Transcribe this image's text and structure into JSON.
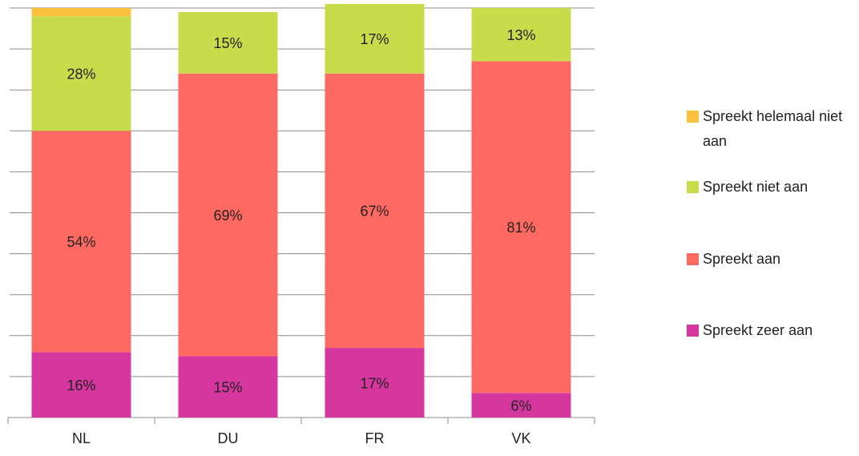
{
  "chart_data": {
    "type": "stacked_bar",
    "categories": [
      "NL",
      "DU",
      "FR",
      "VK"
    ],
    "series": [
      {
        "name": "Spreekt zeer aan",
        "color": "#d5379e",
        "values": [
          16,
          15,
          17,
          6
        ],
        "value_labels": [
          "16%",
          "15%",
          "17%",
          "6%"
        ]
      },
      {
        "name": "Spreekt aan",
        "color": "#fe6a61",
        "values": [
          54,
          69,
          67,
          81
        ],
        "value_labels": [
          "54%",
          "69%",
          "67%",
          "81%"
        ]
      },
      {
        "name": "Spreekt niet aan",
        "color": "#c8dc4b",
        "values": [
          28,
          15,
          17,
          13
        ],
        "value_labels": [
          "28%",
          "15%",
          "17%",
          "13%"
        ]
      },
      {
        "name": "Spreekt helemaal niet aan",
        "color": "#fbc03c",
        "values": [
          2,
          0,
          0,
          0
        ]
      }
    ],
    "ylim": [
      0,
      100
    ],
    "yticks": [
      0,
      10,
      20,
      30,
      40,
      50,
      60,
      70,
      80,
      90,
      100
    ],
    "grid": true,
    "legend": "right"
  }
}
